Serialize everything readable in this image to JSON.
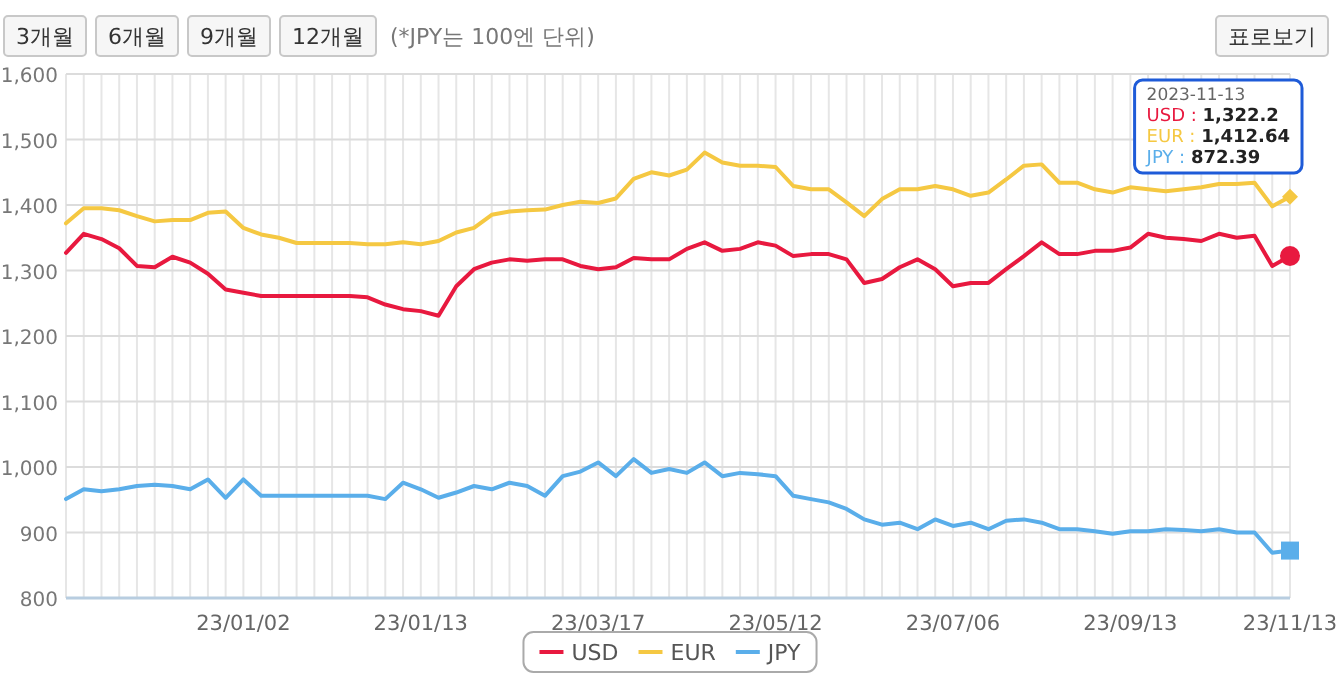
{
  "chart_data": {
    "type": "line",
    "subtitle": "(*JPY는 100엔 단위)",
    "annotations": [
      "3개월",
      "6개월",
      "9개월",
      "12개월",
      "표로보기",
      "2023-11-13",
      "USD : **1,322.2**",
      "EUR : **1,412.64**",
      "JPY : **872.39**"
    ],
    "categories": [
      null,
      null,
      null,
      null,
      null,
      null,
      null,
      null,
      null,
      null,
      "23/01/02",
      null,
      null,
      null,
      null,
      null,
      null,
      null,
      null,
      null,
      "23/01/13",
      null,
      null,
      null,
      null,
      null,
      null,
      null,
      null,
      null,
      "23/03/17",
      null,
      null,
      null,
      null,
      null,
      null,
      null,
      null,
      null,
      "23/05/12",
      null,
      null,
      null,
      null,
      null,
      null,
      null,
      null,
      null,
      "23/07/06",
      null,
      null,
      null,
      null,
      null,
      null,
      null,
      null,
      null,
      "23/09/13",
      null,
      null,
      null,
      null,
      null,
      null,
      null,
      null,
      "23/11/13"
    ],
    "series": [
      {
        "name": "USD",
        "color": "#e8193f",
        "values": [
          1327,
          1356,
          1348,
          1334,
          1307,
          1305,
          1321,
          1312,
          1295,
          1271,
          1266,
          1261,
          1261,
          1261,
          1261,
          1261,
          1261,
          1259,
          1248,
          1241,
          1238,
          1231,
          1276,
          1302,
          1312,
          1317,
          1315,
          1317,
          1317,
          1307,
          1302,
          1305,
          1319,
          1317,
          1317,
          1333,
          1343,
          1330,
          1333,
          1343,
          1338,
          1322,
          1325,
          1325,
          1317,
          1281,
          1287,
          1305,
          1317,
          1302,
          1276,
          1281,
          1281,
          1302,
          1322,
          1343,
          1325,
          1325,
          1330,
          1330,
          1335,
          1356,
          1350,
          1348,
          1345,
          1356,
          1350,
          1353,
          1307,
          1322.2
        ]
      },
      {
        "name": "EUR",
        "color": "#f5c842",
        "values": [
          1372,
          1395,
          1395,
          1392,
          1383,
          1375,
          1377,
          1377,
          1388,
          1390,
          1365,
          1355,
          1350,
          1342,
          1342,
          1342,
          1342,
          1340,
          1340,
          1343,
          1340,
          1345,
          1358,
          1365,
          1385,
          1390,
          1392,
          1393,
          1400,
          1405,
          1403,
          1410,
          1440,
          1450,
          1445,
          1454,
          1480,
          1465,
          1460,
          1460,
          1458,
          1429,
          1424,
          1424,
          1404,
          1383,
          1409,
          1424,
          1424,
          1429,
          1424,
          1414,
          1419,
          1439,
          1460,
          1462,
          1434,
          1434,
          1424,
          1419,
          1427,
          1424,
          1421,
          1424,
          1427,
          1432,
          1432,
          1434,
          1398,
          1412.64
        ]
      },
      {
        "name": "JPY",
        "color": "#5aaeea",
        "values": [
          951,
          966,
          963,
          966,
          971,
          973,
          971,
          966,
          981,
          953,
          981,
          956,
          956,
          956,
          956,
          956,
          956,
          956,
          951,
          976,
          966,
          953,
          961,
          971,
          966,
          976,
          971,
          956,
          986,
          993,
          1007,
          986,
          1012,
          991,
          997,
          991,
          1007,
          986,
          991,
          989,
          986,
          956,
          951,
          946,
          936,
          920,
          912,
          915,
          905,
          920,
          910,
          915,
          905,
          918,
          920,
          915,
          905,
          905,
          902,
          898,
          902,
          902,
          905,
          904,
          902,
          905,
          900,
          900,
          869,
          872.39
        ]
      }
    ],
    "ylim": [
      800,
      1600
    ],
    "yticks": [
      {
        "value": 800,
        "label": "800"
      },
      {
        "value": 900,
        "label": "900"
      },
      {
        "value": 1000,
        "label": "1,000"
      },
      {
        "value": 1100,
        "label": "1,100"
      },
      {
        "value": 1200,
        "label": "1,200"
      },
      {
        "value": 1300,
        "label": "1,300"
      },
      {
        "value": 1400,
        "label": "1,400"
      },
      {
        "value": 1500,
        "label": "1,500"
      },
      {
        "value": 1600,
        "label": "1,600"
      }
    ],
    "grid": true,
    "legend": "bottom"
  }
}
